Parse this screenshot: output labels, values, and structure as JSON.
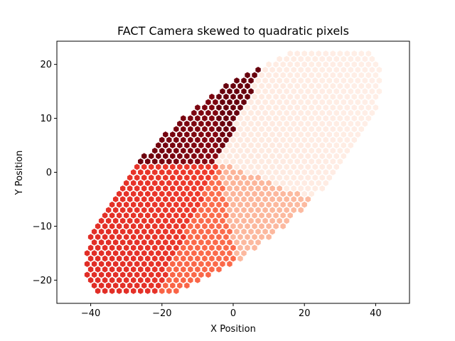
{
  "chart_data": {
    "type": "scatter",
    "title": "FACT Camera skewed to quadratic pixels",
    "xlabel": "X Position",
    "ylabel": "Y Position",
    "xlim": [
      -49.5,
      49.5
    ],
    "ylim": [
      -24.3,
      24.3
    ],
    "xticks": [
      -40,
      -20,
      0,
      20,
      40
    ],
    "yticks": [
      -20,
      -10,
      0,
      10,
      20
    ],
    "xtick_labels": [
      "−40",
      "−20",
      "0",
      "20",
      "40"
    ],
    "ytick_labels": [
      "−20",
      "−10",
      "0",
      "10",
      "20"
    ],
    "marker": "hexagon",
    "colormap": "Reds",
    "grid": false,
    "pixel_grid": {
      "x_step": 2,
      "y_step": 1,
      "camera_shape": "ellipse",
      "center": [
        0,
        0
      ],
      "semi_major": 46,
      "semi_minor": 15.5,
      "tilt_degrees": 25.6
    },
    "sectors": [
      {
        "description": "upper-left",
        "x_range": [
          -45,
          22
        ],
        "y_range": [
          -5,
          22
        ],
        "color": "#7f0a10"
      },
      {
        "description": "left",
        "x_range": [
          -45,
          -8
        ],
        "y_range": [
          -15,
          0
        ],
        "color": "#ef3b2c"
      },
      {
        "description": "bottom",
        "x_range": [
          -38,
          10
        ],
        "y_range": [
          -22,
          -8
        ],
        "color": "#fb6a4a"
      },
      {
        "description": "right-lower",
        "x_range": [
          -8,
          40
        ],
        "y_range": [
          -18,
          0
        ],
        "color": "#fcbba1"
      },
      {
        "description": "right-upper",
        "x_range": [
          10,
          45
        ],
        "y_range": [
          0,
          22
        ],
        "color": "#fee0d2"
      }
    ],
    "colors": {
      "dark": "#67000d",
      "mid_dark": "#a50f15",
      "red": "#ef3b2c",
      "salmon": "#fb6a4a",
      "light": "#fcbba1",
      "lightest": "#fff5f0"
    }
  }
}
